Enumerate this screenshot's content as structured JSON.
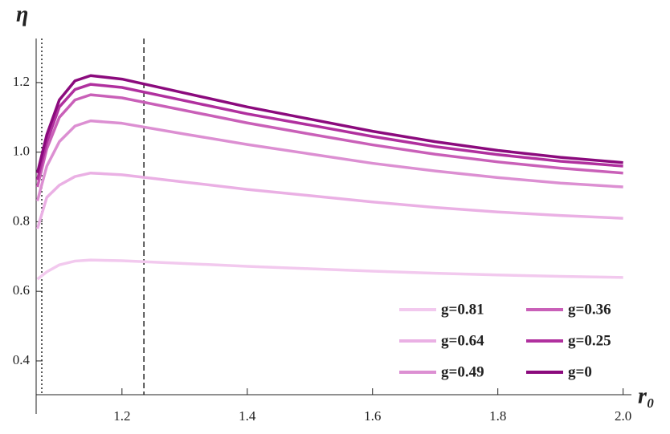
{
  "chart_data": {
    "type": "line",
    "x_label": "r₀",
    "y_label": "η",
    "x": [
      1.065,
      1.08,
      1.1,
      1.125,
      1.15,
      1.2,
      1.3,
      1.4,
      1.5,
      1.6,
      1.7,
      1.8,
      1.9,
      2.0
    ],
    "series": [
      {
        "name": "g=0.81",
        "color": "#f2c9ee",
        "values": [
          0.635,
          0.656,
          0.676,
          0.687,
          0.69,
          0.688,
          0.68,
          0.672,
          0.665,
          0.658,
          0.652,
          0.647,
          0.643,
          0.64
        ]
      },
      {
        "name": "g=0.64",
        "color": "#eab0e4",
        "values": [
          0.78,
          0.87,
          0.905,
          0.93,
          0.94,
          0.935,
          0.914,
          0.893,
          0.875,
          0.857,
          0.841,
          0.828,
          0.818,
          0.81
        ]
      },
      {
        "name": "g=0.49",
        "color": "#dc8fd2",
        "values": [
          0.86,
          0.96,
          1.03,
          1.075,
          1.09,
          1.083,
          1.052,
          1.022,
          0.995,
          0.968,
          0.946,
          0.927,
          0.911,
          0.9
        ]
      },
      {
        "name": "g=0.36",
        "color": "#c960b8",
        "values": [
          0.9,
          1.01,
          1.1,
          1.15,
          1.165,
          1.156,
          1.12,
          1.084,
          1.052,
          1.021,
          0.994,
          0.972,
          0.954,
          0.94
        ]
      },
      {
        "name": "g=0.25",
        "color": "#b0309e",
        "values": [
          0.92,
          1.03,
          1.13,
          1.18,
          1.195,
          1.186,
          1.148,
          1.11,
          1.078,
          1.045,
          1.016,
          0.993,
          0.974,
          0.96
        ]
      },
      {
        "name": "g=0",
        "color": "#8b0a7d",
        "values": [
          0.94,
          1.05,
          1.15,
          1.205,
          1.22,
          1.21,
          1.17,
          1.13,
          1.095,
          1.06,
          1.03,
          1.005,
          0.985,
          0.97
        ]
      }
    ],
    "vlines": [
      {
        "value": 1.072,
        "style": "dotted"
      },
      {
        "value": 1.235,
        "style": "dashed"
      }
    ],
    "xlim": [
      1.063,
      2.012
    ],
    "ylim": [
      0.303,
      1.322
    ],
    "xticks": [
      1.2,
      1.4,
      1.6,
      1.8,
      {
        "value": 2.0,
        "label": "2.0"
      }
    ],
    "yticks": [
      0.4,
      0.6,
      0.8,
      {
        "value": 1.0,
        "label": "1.0"
      },
      1.2
    ],
    "legend": "lower right"
  }
}
